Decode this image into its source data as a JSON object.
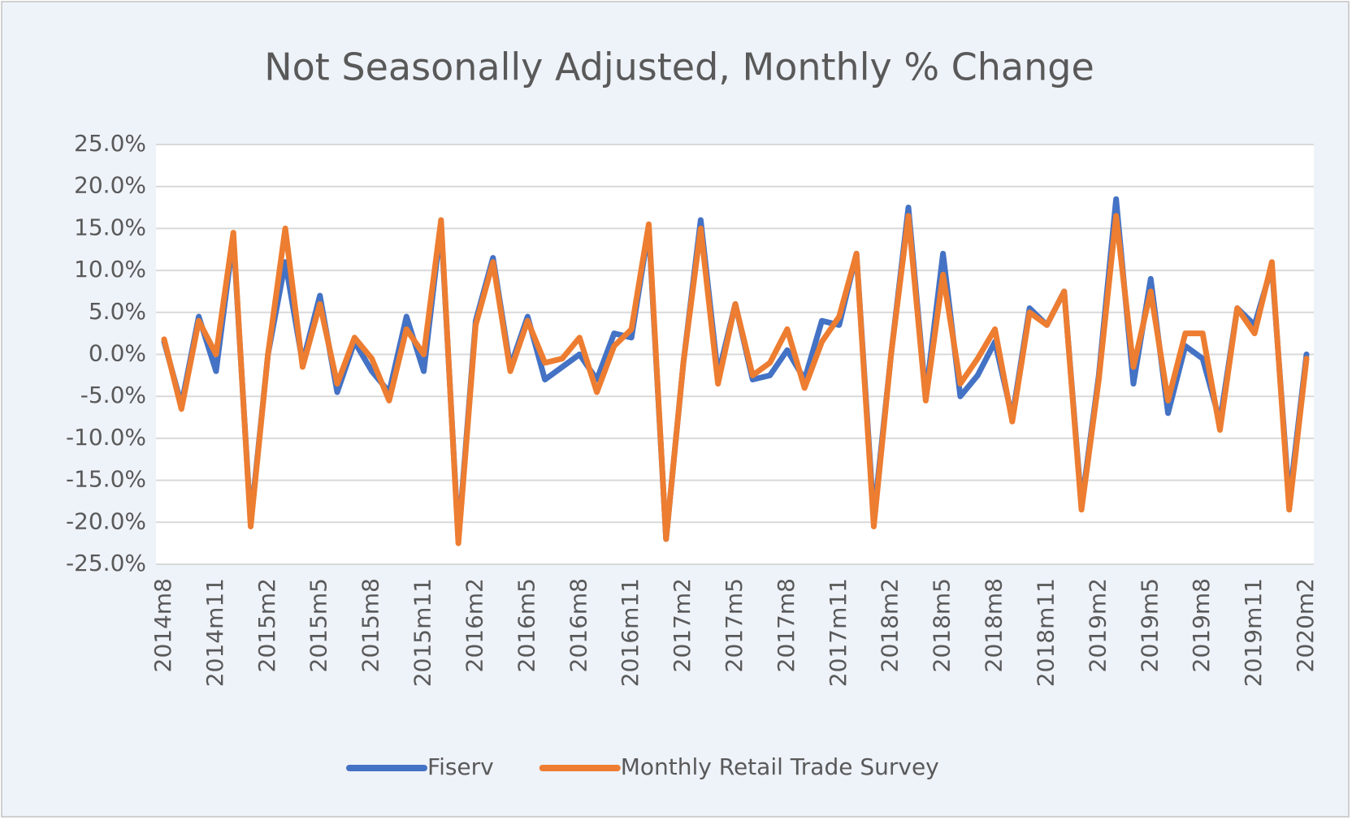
{
  "chart_data": {
    "type": "line",
    "title": "Not Seasonally Adjusted, Monthly % Change",
    "categories": [
      "2014m8",
      null,
      null,
      "2014m11",
      null,
      null,
      "2015m2",
      null,
      null,
      "2015m5",
      null,
      null,
      "2015m8",
      null,
      null,
      "2015m11",
      null,
      null,
      "2016m2",
      null,
      null,
      "2016m5",
      null,
      null,
      "2016m8",
      null,
      null,
      "2016m11",
      null,
      null,
      "2017m2",
      null,
      null,
      "2017m5",
      null,
      null,
      "2017m8",
      null,
      null,
      "2017m11",
      null,
      null,
      "2018m2",
      null,
      null,
      "2018m5",
      null,
      null,
      "2018m8",
      null,
      null,
      "2018m11",
      null,
      null,
      "2019m2",
      null,
      null,
      "2019m5",
      null,
      null,
      "2019m8",
      null,
      null,
      "2019m11",
      null,
      null,
      "2020m2"
    ],
    "series": [
      {
        "name": "Fiserv",
        "color": "#4472c4",
        "values": [
          1.5,
          -6,
          4.5,
          -2,
          14,
          -20,
          0,
          11,
          -1,
          7,
          -4.5,
          1.5,
          -2,
          -4.5,
          4.5,
          -2,
          15.5,
          -22,
          4,
          11.5,
          -1.5,
          4.5,
          -3,
          -1.5,
          0,
          -3,
          2.5,
          2,
          15,
          -22,
          -1,
          16,
          -2.5,
          6,
          -3,
          -2.5,
          0.5,
          -3,
          4,
          3.5,
          12,
          -19.5,
          0,
          17.5,
          -5,
          12,
          -5,
          -2.5,
          1.5,
          -7.5,
          5.5,
          3.5,
          7.5,
          -18,
          -2.5,
          18.5,
          -3.5,
          9,
          -7,
          1,
          -0.5,
          -8,
          5.5,
          3.5,
          10.5,
          -17.5,
          0
        ]
      },
      {
        "name": "Monthly Retail Trade Survey",
        "color": "#ed7d31",
        "values": [
          1.8,
          -6.5,
          4,
          0,
          14.5,
          -20.5,
          0,
          15,
          -1.5,
          6,
          -3.5,
          2,
          -0.5,
          -5.5,
          3,
          0,
          16,
          -22.5,
          3.5,
          11,
          -2,
          4,
          -1,
          -0.5,
          2,
          -4.5,
          1,
          3,
          15.5,
          -22,
          -1,
          15,
          -3.5,
          6,
          -2.5,
          -1,
          3,
          -4,
          1.5,
          4.5,
          12,
          -20.5,
          0,
          16.5,
          -5.5,
          9.5,
          -3.5,
          -0.5,
          3,
          -8,
          5,
          3.5,
          7.5,
          -18.5,
          -3,
          16.5,
          -1.5,
          7.5,
          -5.5,
          2.5,
          2.5,
          -9,
          5.5,
          2.5,
          11,
          -18.5,
          -0.5
        ]
      }
    ],
    "ylim": [
      -25,
      25
    ],
    "yticks": [
      {
        "value": -25,
        "label": "-25.0%"
      },
      {
        "value": -20,
        "label": "-20.0%"
      },
      {
        "value": -15,
        "label": "-15.0%"
      },
      {
        "value": -10,
        "label": "-10.0%"
      },
      {
        "value": -5,
        "label": "-5.0%"
      },
      {
        "value": 0,
        "label": "0.0%"
      },
      {
        "value": 5,
        "label": "5.0%"
      },
      {
        "value": 10,
        "label": "10.0%"
      },
      {
        "value": 15,
        "label": "15.0%"
      },
      {
        "value": 20,
        "label": "20.0%"
      },
      {
        "value": 25,
        "label": "25.0%"
      }
    ],
    "grid": true,
    "legend": "bottom"
  }
}
